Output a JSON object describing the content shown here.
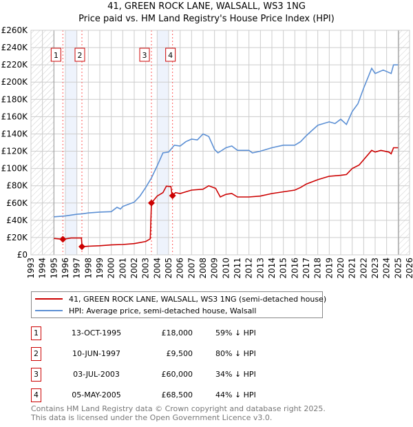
{
  "title": "41, GREEN ROCK LANE, WALSALL, WS3 1NG",
  "subtitle": "Price paid vs. HM Land Registry's House Price Index (HPI)",
  "colors": {
    "property": "#cc0000",
    "hpi": "#5b8fd4",
    "band": "#eef3fc",
    "grid": "#cccccc"
  },
  "chart_data": {
    "type": "line",
    "title": "41, GREEN ROCK LANE, WALSALL, WS3 1NG",
    "xlim": [
      1993,
      2026
    ],
    "ylim": [
      0,
      260000
    ],
    "x_ticks": [
      1993,
      1994,
      1995,
      1996,
      1997,
      1998,
      1999,
      2000,
      2001,
      2002,
      2003,
      2004,
      2005,
      2006,
      2007,
      2008,
      2009,
      2010,
      2011,
      2012,
      2013,
      2014,
      2015,
      2016,
      2017,
      2018,
      2019,
      2020,
      2021,
      2022,
      2023,
      2024,
      2025,
      2026
    ],
    "y_ticks": [
      0,
      20000,
      40000,
      60000,
      80000,
      100000,
      120000,
      140000,
      160000,
      180000,
      200000,
      220000,
      240000,
      260000
    ],
    "y_tick_labels": [
      "£0",
      "£20K",
      "£40K",
      "£60K",
      "£80K",
      "£100K",
      "£120K",
      "£140K",
      "£160K",
      "£180K",
      "£200K",
      "£220K",
      "£240K",
      "£260K"
    ],
    "grid": true,
    "hatched_ranges": [
      [
        1993,
        1995
      ],
      [
        2025.05,
        2026
      ]
    ],
    "shaded_bands": [
      [
        1996,
        1997
      ],
      [
        2004,
        2005
      ]
    ],
    "series": [
      {
        "name": "41, GREEN ROCK LANE, WALSALL, WS3 1NG (semi-detached house)",
        "color": "#cc0000",
        "x": [
          1995,
          1995.8,
          1996.5,
          1997.4,
          1997.45,
          1998,
          1999,
          2000,
          2001,
          2002,
          2003,
          2003.4,
          2003.5,
          2004,
          2004.5,
          2004.8,
          2005.2,
          2005.3,
          2005.6,
          2006,
          2006.5,
          2007,
          2008,
          2008.5,
          2009.1,
          2009.5,
          2010,
          2010.5,
          2011,
          2012,
          2013,
          2014,
          2015,
          2016,
          2016.5,
          2017,
          2018,
          2019,
          2020,
          2020.5,
          2021,
          2021.6,
          2022.7,
          2023,
          2023.5,
          2024.2,
          2024.4,
          2024.6,
          2025
        ],
        "y": [
          19000,
          18000,
          19500,
          19500,
          9500,
          10000,
          10500,
          11500,
          12000,
          13000,
          15500,
          18500,
          60000,
          68000,
          72000,
          79500,
          79000,
          68500,
          72000,
          71000,
          73000,
          75000,
          76000,
          80000,
          77000,
          67000,
          70000,
          71000,
          67000,
          67000,
          68000,
          71000,
          73000,
          75000,
          78000,
          82000,
          87000,
          91000,
          92000,
          93000,
          100000,
          104000,
          121000,
          119000,
          121000,
          119000,
          117000,
          124000,
          124000
        ]
      },
      {
        "name": "HPI: Average price, semi-detached house, Walsall",
        "color": "#5b8fd4",
        "x": [
          1995,
          1996,
          1997,
          1997.5,
          1998,
          1999,
          2000,
          2000.5,
          2000.8,
          2001,
          2002,
          2002.5,
          2003,
          2003.5,
          2004,
          2004.5,
          2005,
          2005.5,
          2006,
          2006.5,
          2007,
          2007.5,
          2008,
          2008.5,
          2009,
          2009.3,
          2010,
          2010.5,
          2011,
          2012,
          2012.3,
          2013,
          2014,
          2015,
          2016,
          2016.5,
          2017,
          2017.5,
          2018,
          2019,
          2019.5,
          2020,
          2020.5,
          2021,
          2021.5,
          2022,
          2022.7,
          2023,
          2023.7,
          2024.4,
          2024.6,
          2025
        ],
        "y": [
          44000,
          45000,
          47000,
          47500,
          48500,
          49500,
          50000,
          55000,
          53000,
          56000,
          61000,
          68000,
          78000,
          89000,
          103000,
          118000,
          119000,
          127000,
          126000,
          131000,
          134000,
          133000,
          140000,
          137000,
          122000,
          118000,
          124000,
          126000,
          121000,
          121000,
          118000,
          120000,
          124000,
          127000,
          127000,
          131000,
          138000,
          144000,
          150000,
          154000,
          152000,
          157000,
          151000,
          166000,
          175000,
          193000,
          216000,
          210000,
          214000,
          210000,
          220000,
          220000
        ]
      }
    ],
    "sales": [
      {
        "label": "1",
        "x": 1995.78,
        "y": 18000
      },
      {
        "label": "2",
        "x": 1997.44,
        "y": 9500
      },
      {
        "label": "3",
        "x": 2003.5,
        "y": 60000
      },
      {
        "label": "4",
        "x": 2005.34,
        "y": 68500
      }
    ]
  },
  "legend": {
    "property": "41, GREEN ROCK LANE, WALSALL, WS3 1NG (semi-detached house)",
    "hpi": "HPI: Average price, semi-detached house, Walsall"
  },
  "transactions": [
    {
      "num": "1",
      "date": "13-OCT-1995",
      "price": "£18,000",
      "hpi": "59% ↓ HPI"
    },
    {
      "num": "2",
      "date": "10-JUN-1997",
      "price": "£9,500",
      "hpi": "80% ↓ HPI"
    },
    {
      "num": "3",
      "date": "03-JUL-2003",
      "price": "£60,000",
      "hpi": "34% ↓ HPI"
    },
    {
      "num": "4",
      "date": "05-MAY-2005",
      "price": "£68,500",
      "hpi": "44% ↓ HPI"
    }
  ],
  "footer": [
    "Contains HM Land Registry data © Crown copyright and database right 2025.",
    "This data is licensed under the Open Government Licence v3.0."
  ]
}
